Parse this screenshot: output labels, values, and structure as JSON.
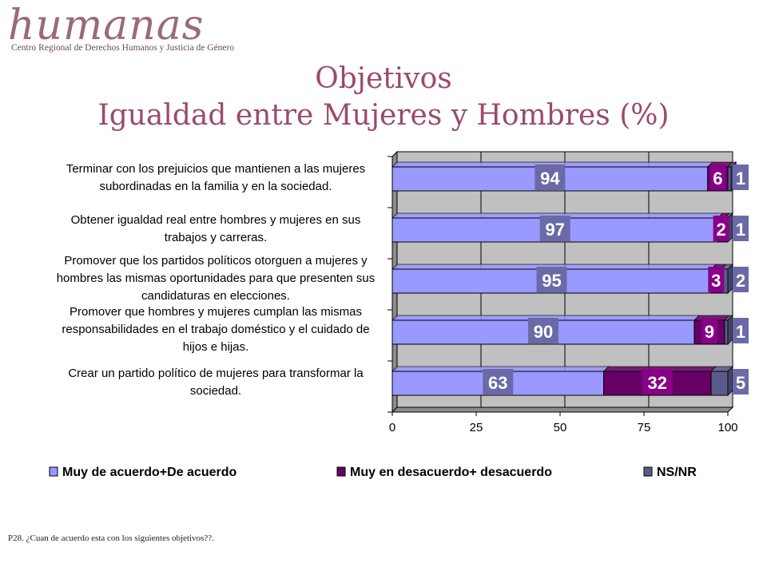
{
  "logo": {
    "word": "humanas",
    "subtitle": "Centro Regional de Derechos Humanos y Justicia de Género"
  },
  "title": {
    "line1": "Objetivos",
    "line2": "Igualdad entre Mujeres y Hombres (%)"
  },
  "footnote": "P28. ¿Cuan de acuerdo esta con los siguientes objetivos??.",
  "colors": {
    "agree": "#9999ff",
    "disagree": "#660066",
    "nsnr": "#5a5a8c",
    "plot_bg": "#c0c0c0",
    "label_box": "#6a6aa8"
  },
  "chart_data": {
    "type": "bar",
    "orientation": "horizontal",
    "stacked": true,
    "categories": [
      [
        "Terminar con los prejuicios que mantienen a las mujeres",
        "subordinadas en la familia y en la sociedad."
      ],
      [
        "Obtener igualdad real entre hombres y mujeres en sus",
        "trabajos y carreras."
      ],
      [
        "Promover que los partidos políticos otorguen a mujeres y",
        "hombres las mismas oportunidades para que presenten sus",
        "candidaturas en elecciones."
      ],
      [
        "Promover que hombres y mujeres cumplan las mismas",
        "responsabilidades en el trabajo doméstico y el cuidado de",
        "hijos e hijas."
      ],
      [
        "Crear un partido político de mujeres para transformar la",
        "sociedad."
      ]
    ],
    "series": [
      {
        "name": "Muy de acuerdo+De acuerdo",
        "values": [
          94,
          97,
          95,
          90,
          63
        ]
      },
      {
        "name": "Muy en desacuerdo+ desacuerdo",
        "values": [
          6,
          2,
          3,
          9,
          32
        ]
      },
      {
        "name": "NS/NR",
        "values": [
          1,
          1,
          2,
          1,
          5
        ]
      }
    ],
    "xlim": [
      0,
      100
    ],
    "xticks": [
      0,
      25,
      50,
      75,
      100
    ],
    "grid": true,
    "legend_position": "bottom"
  }
}
